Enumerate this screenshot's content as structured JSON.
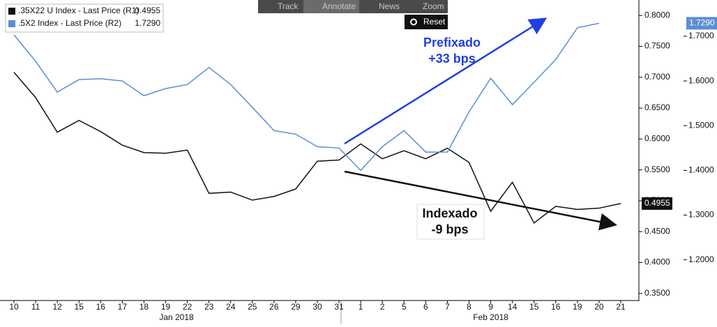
{
  "toolbar": [
    "Track",
    "Annotate",
    "News",
    "Zoom"
  ],
  "reset": "Reset",
  "chart_data": {
    "type": "line",
    "categories": [
      "10",
      "11",
      "12",
      "15",
      "16",
      "17",
      "18",
      "19",
      "22",
      "23",
      "24",
      "25",
      "26",
      "29",
      "30",
      "31",
      "1",
      "2",
      "5",
      "6",
      "7",
      "8",
      "9",
      "14",
      "15",
      "16",
      "19",
      "20",
      "21"
    ],
    "months": [
      {
        "label": "Jan 2018",
        "from": 0,
        "to": 15
      },
      {
        "label": "Feb 2018",
        "from": 16,
        "to": 28
      }
    ],
    "series": [
      {
        "name": ".35X22 U Index - Last Price (R1)",
        "last_price": "0.4955",
        "color": "#111111",
        "axis": "y",
        "values": [
          0.708,
          0.667,
          0.611,
          0.63,
          0.612,
          0.59,
          0.578,
          0.577,
          0.582,
          0.512,
          0.514,
          0.501,
          0.507,
          0.519,
          0.564,
          0.566,
          0.592,
          0.568,
          0.581,
          0.568,
          0.585,
          0.562,
          0.483,
          0.53,
          0.464,
          0.491,
          0.486,
          0.488,
          0.4955
        ]
      },
      {
        "name": ".5X2 Index - Last Price (R2)",
        "last_price": "1.7290",
        "color": "#5b8fd0",
        "axis": "y2",
        "values": [
          1.703,
          1.644,
          1.575,
          1.603,
          1.605,
          1.6,
          1.567,
          1.583,
          1.592,
          1.63,
          1.592,
          1.541,
          1.489,
          1.481,
          1.453,
          1.45,
          1.4,
          1.453,
          1.489,
          1.441,
          1.441,
          1.531,
          1.606,
          1.547,
          1.597,
          1.648,
          1.719,
          1.729,
          null
        ]
      }
    ],
    "ylim": [
      0.3385,
      0.825
    ],
    "yticks": [
      {
        "value": 0.35,
        "label": "0.3500"
      },
      {
        "value": 0.4,
        "label": "0.4000"
      },
      {
        "value": 0.45,
        "label": "0.4500"
      },
      {
        "value": 0.5,
        "label": "0.5000"
      },
      {
        "value": 0.55,
        "label": "0.5500"
      },
      {
        "value": 0.6,
        "label": "0.6000"
      },
      {
        "value": 0.65,
        "label": "0.6500"
      },
      {
        "value": 0.7,
        "label": "0.7000"
      },
      {
        "value": 0.75,
        "label": "0.7500"
      },
      {
        "value": 0.8,
        "label": "0.8000"
      }
    ],
    "y2lim": [
      1.109,
      1.781
    ],
    "y2ticks": [
      {
        "value": 1.2,
        "label": "1.2000"
      },
      {
        "value": 1.3,
        "label": "1.3000"
      },
      {
        "value": 1.4,
        "label": "1.4000"
      },
      {
        "value": 1.5,
        "label": "1.5000"
      },
      {
        "value": 1.6,
        "label": "1.6000"
      },
      {
        "value": 1.7,
        "label": "1.7000"
      }
    ],
    "annotations": [
      {
        "lines": [
          "Prefixado",
          "+33 bps"
        ],
        "color": "#1f3fe0"
      },
      {
        "lines": [
          "Indexado",
          "-9 bps"
        ],
        "color": "#111111"
      }
    ]
  }
}
